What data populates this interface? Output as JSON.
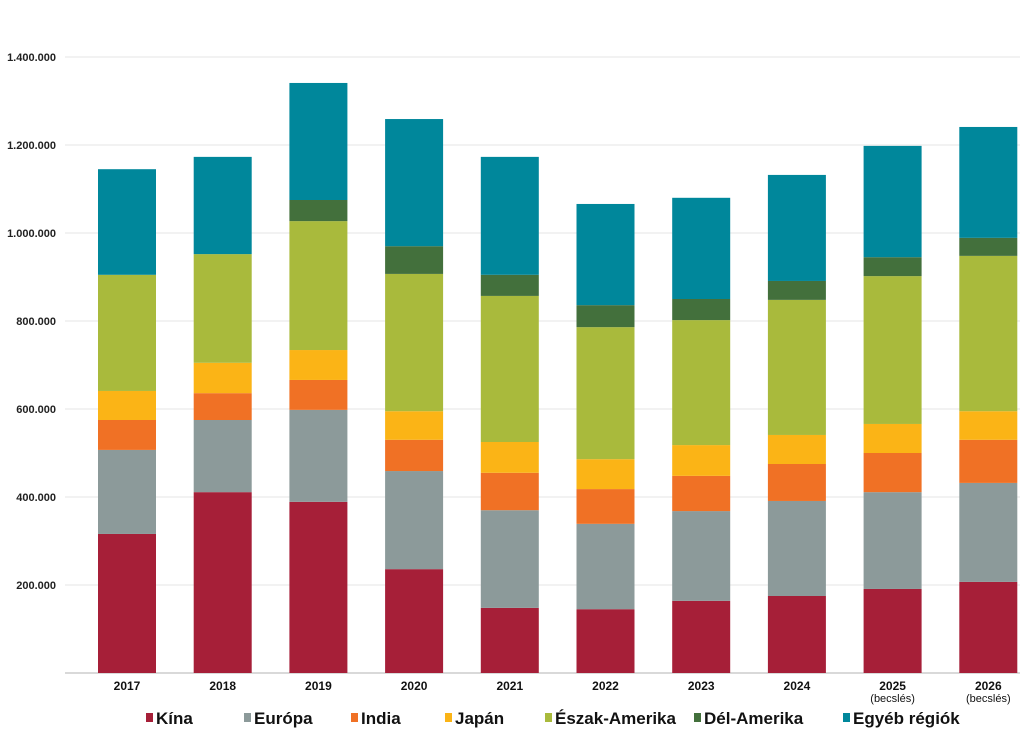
{
  "chart_data": {
    "type": "bar",
    "stacked": true,
    "title": "",
    "xlabel": "",
    "ylabel": "",
    "ylim": [
      0,
      1400000
    ],
    "yticks": [
      200000,
      400000,
      600000,
      800000,
      1000000,
      1200000,
      1400000
    ],
    "ytick_labels": [
      "200.000",
      "400.000",
      "600.000",
      "800.000",
      "1.000.000",
      "1.200.000",
      "1.400.000"
    ],
    "grid": true,
    "legend_position": "bottom",
    "categories": [
      "2017",
      "2018",
      "2019",
      "2020",
      "2021",
      "2022",
      "2023",
      "2024",
      "2025",
      "2026"
    ],
    "category_notes": [
      "",
      "",
      "",
      "",
      "",
      "",
      "",
      "",
      "(becslés)",
      "(becslés)"
    ],
    "series": [
      {
        "name": "Kína",
        "color": "#a61f38",
        "values": [
          316000,
          411000,
          389000,
          236000,
          148000,
          145000,
          164000,
          175000,
          191000,
          207000
        ]
      },
      {
        "name": "Európa",
        "color": "#8c9a9a",
        "values": [
          191000,
          164000,
          209000,
          223000,
          222000,
          194000,
          204000,
          216000,
          220000,
          225000
        ]
      },
      {
        "name": "India",
        "color": "#f07125",
        "values": [
          68000,
          61000,
          68000,
          71000,
          85000,
          79000,
          80000,
          84000,
          89000,
          98000
        ]
      },
      {
        "name": "Japán",
        "color": "#fbb416",
        "values": [
          66000,
          69000,
          68000,
          65000,
          70000,
          68000,
          70000,
          66000,
          66000,
          65000
        ]
      },
      {
        "name": "Észak-Amerika",
        "color": "#a9ba3c",
        "values": [
          264000,
          247000,
          293000,
          312000,
          332000,
          300000,
          284000,
          307000,
          336000,
          353000
        ]
      },
      {
        "name": "Dél-Amerika",
        "color": "#43703c",
        "values": [
          0,
          0,
          48000,
          63000,
          48000,
          50000,
          48000,
          43000,
          43000,
          41000
        ]
      },
      {
        "name": "Egyéb régiók",
        "color": "#00879b",
        "values": [
          240000,
          221000,
          266000,
          289000,
          268000,
          230000,
          230000,
          241000,
          253000,
          252000
        ]
      }
    ]
  }
}
